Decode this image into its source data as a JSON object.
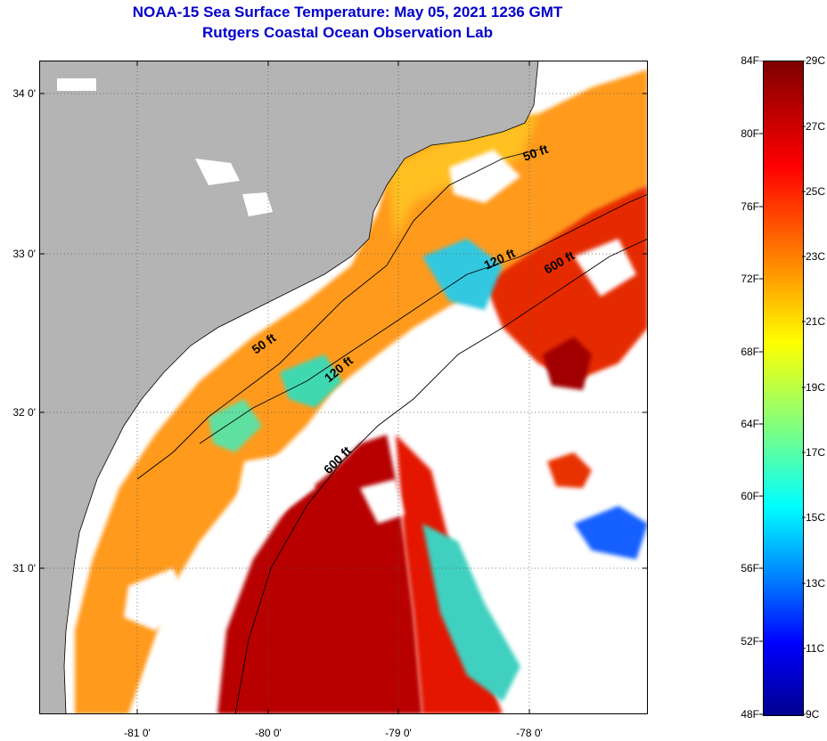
{
  "title": {
    "line1": "NOAA-15 Sea Surface Temperature:  May 05, 2021 1236 GMT",
    "line2": "Rutgers Coastal Ocean Observation Lab"
  },
  "map": {
    "lat_labels": [
      "34 0'",
      "33 0'",
      "32 0'",
      "31 0'"
    ],
    "lon_labels": [
      "-81 0'",
      "-80 0'",
      "-79 0'",
      "-78 0'"
    ],
    "depth_labels": [
      "50 ft",
      "120 ft",
      "600 ft",
      "50 ft",
      "120 ft",
      "600 ft"
    ],
    "land_color": "#b4b4b4",
    "cloud_color": "#ffffff"
  },
  "colorbar": {
    "fahrenheit": [
      "84F",
      "80F",
      "76F",
      "72F",
      "68F",
      "64F",
      "60F",
      "56F",
      "52F",
      "48F"
    ],
    "celsius": [
      "29C",
      "27C",
      "25C",
      "23C",
      "21C",
      "19C",
      "17C",
      "15C",
      "13C",
      "11C",
      "9C"
    ],
    "colors": [
      "#7f0000",
      "#ff0000",
      "#ff8000",
      "#ffff00",
      "#80ff80",
      "#00ffff",
      "#0080ff",
      "#0000ff",
      "#00008f"
    ]
  }
}
